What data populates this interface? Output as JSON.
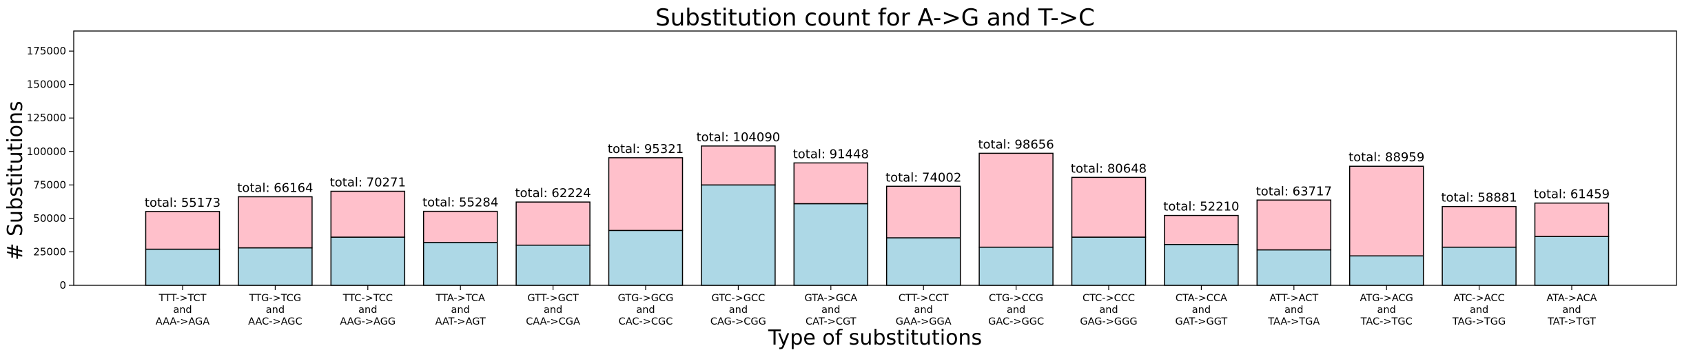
{
  "chart_data": {
    "type": "bar",
    "stacked": true,
    "title": "Substitution count for A->G and T->C",
    "xlabel": "Type of substitutions",
    "ylabel": "# Substitutions",
    "ylim": [
      0,
      190000
    ],
    "yticks": [
      0,
      25000,
      50000,
      75000,
      100000,
      125000,
      150000,
      175000
    ],
    "grid": false,
    "legend": "none",
    "categories": [
      [
        "TTT->TCT",
        "and",
        "AAA->AGA"
      ],
      [
        "TTG->TCG",
        "and",
        "AAC->AGC"
      ],
      [
        "TTC->TCC",
        "and",
        "AAG->AGG"
      ],
      [
        "TTA->TCA",
        "and",
        "AAT->AGT"
      ],
      [
        "GTT->GCT",
        "and",
        "CAA->CGA"
      ],
      [
        "GTG->GCG",
        "and",
        "CAC->CGC"
      ],
      [
        "GTC->GCC",
        "and",
        "CAG->CGG"
      ],
      [
        "GTA->GCA",
        "and",
        "CAT->CGT"
      ],
      [
        "CTT->CCT",
        "and",
        "GAA->GGA"
      ],
      [
        "CTG->CCG",
        "and",
        "GAC->GGC"
      ],
      [
        "CTC->CCC",
        "and",
        "GAG->GGG"
      ],
      [
        "CTA->CCA",
        "and",
        "GAT->GGT"
      ],
      [
        "ATT->ACT",
        "and",
        "TAA->TGA"
      ],
      [
        "ATG->ACG",
        "and",
        "TAC->TGC"
      ],
      [
        "ATC->ACC",
        "and",
        "TAG->TGG"
      ],
      [
        "ATA->ACA",
        "and",
        "TAT->TGT"
      ]
    ],
    "series": [
      {
        "color": "#add8e6",
        "values": [
          27000,
          28000,
          36000,
          32000,
          30000,
          41000,
          75000,
          61000,
          35500,
          28500,
          36000,
          30500,
          26500,
          22000,
          28500,
          36500
        ]
      },
      {
        "color": "#ffc0cb",
        "values": [
          28173,
          38164,
          34271,
          23284,
          32224,
          54321,
          29090,
          30448,
          38502,
          70156,
          44648,
          21710,
          37217,
          66959,
          30381,
          24959
        ]
      }
    ],
    "totals": [
      55173,
      66164,
      70271,
      55284,
      62224,
      95321,
      104090,
      91448,
      74002,
      98656,
      80648,
      52210,
      63717,
      88959,
      58881,
      61459
    ],
    "total_label_prefix": "total: "
  }
}
